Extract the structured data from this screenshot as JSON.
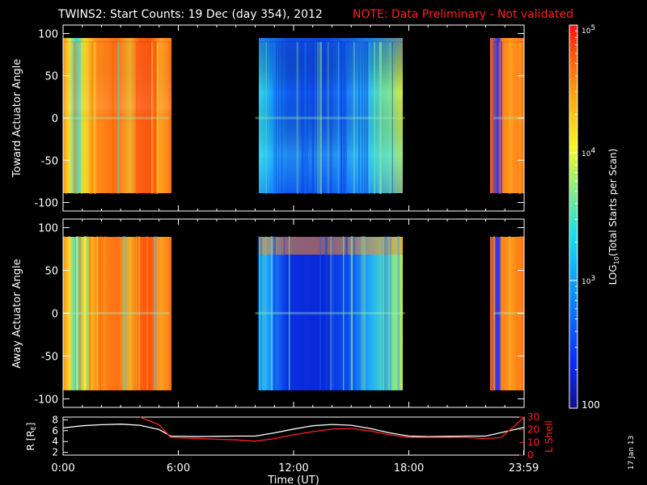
{
  "header": {
    "title": "TWINS2: Start Counts: 19 Dec (day 354), 2012",
    "note": "NOTE: Data Preliminary - Not validated",
    "title_color": "#ffffff",
    "note_color": "#ff2020"
  },
  "footer": {
    "stamp": "17 Jan 13"
  },
  "chart_data": [
    {
      "type": "heatmap",
      "panel": "top",
      "title": "",
      "ylabel": "Toward Actuator Angle",
      "xlabel": "",
      "xlim": [
        0,
        24
      ],
      "ylim": [
        -110,
        110
      ],
      "yticks": [
        -100,
        -50,
        0,
        50,
        100
      ],
      "angle_range": [
        -90,
        90
      ],
      "data_intervals_hours": [
        [
          0,
          5.55
        ],
        [
          10.0,
          17.8
        ],
        [
          22.4,
          24.0
        ]
      ],
      "approx_log10_counts": {
        "interval_1": 4.4,
        "interval_2": 3.2,
        "interval_3": 4.6
      }
    },
    {
      "type": "heatmap",
      "panel": "middle",
      "title": "",
      "ylabel": "Away Actuator Angle",
      "xlabel": "",
      "xlim": [
        0,
        24
      ],
      "ylim": [
        -110,
        110
      ],
      "yticks": [
        -100,
        -50,
        0,
        50,
        100
      ],
      "angle_range": [
        -90,
        90
      ],
      "data_intervals_hours": [
        [
          0,
          5.55
        ],
        [
          10.0,
          17.8
        ],
        [
          22.4,
          24.0
        ]
      ],
      "approx_log10_counts": {
        "interval_1": 4.4,
        "interval_2": 2.8,
        "interval_3": 4.6
      }
    },
    {
      "type": "line",
      "panel": "bottom",
      "xlabel": "Time (UT)",
      "ylabel": "R [R",
      "ylabel_sub": "E",
      "ylabel_close": "]",
      "ylabel_right": "L Shell",
      "ylim": [
        1.5,
        8.5
      ],
      "yticks": [
        2,
        4,
        6,
        8
      ],
      "ylim_right": [
        0,
        30
      ],
      "yticks_right": [
        0,
        10,
        20,
        30
      ],
      "xlim": [
        0,
        24
      ],
      "xticks": [
        0,
        6,
        12,
        18,
        23.983
      ],
      "xtick_labels": [
        "0:00",
        "6:00",
        "12:00",
        "18:00",
        "23:59"
      ],
      "series": [
        {
          "name": "R",
          "color": "#ffffff",
          "x": [
            0,
            1,
            2,
            3,
            4,
            5,
            5.6,
            7,
            8,
            9,
            10,
            11,
            12,
            13,
            14,
            15,
            16,
            17,
            18,
            19,
            20,
            21,
            22,
            23,
            24
          ],
          "values": [
            6.5,
            6.9,
            7.1,
            7.2,
            7.0,
            6.2,
            5.0,
            4.9,
            4.95,
            5.0,
            5.0,
            5.6,
            6.3,
            6.9,
            7.15,
            7.0,
            6.4,
            5.6,
            5.0,
            4.9,
            4.95,
            5.0,
            5.0,
            5.8,
            6.6
          ]
        },
        {
          "name": "L Shell",
          "color": "#ff2020",
          "x": [
            4.0,
            5.0,
            5.6,
            7,
            8,
            9,
            10,
            11,
            12,
            13,
            14,
            15,
            16,
            17,
            18,
            19,
            20,
            21,
            22,
            22.8,
            23.5,
            24
          ],
          "values": [
            31,
            24,
            14,
            13,
            12.5,
            12,
            11,
            13,
            16,
            18.5,
            20.5,
            21,
            19,
            16,
            14,
            14,
            14,
            14,
            13,
            14,
            23,
            31
          ]
        }
      ]
    },
    {
      "type": "colorbar",
      "label": "LOG",
      "label_sub": "10",
      "label_rest": "(Total Starts per Scan)",
      "scale": "log",
      "range": [
        100,
        100000
      ],
      "tick_labels": [
        "100",
        "10",
        "3",
        "10",
        "4",
        "10",
        "5"
      ],
      "ticks": [
        {
          "value": 100,
          "label": "100"
        },
        {
          "value": 1000,
          "base": "10",
          "exp": "3"
        },
        {
          "value": 10000,
          "base": "10",
          "exp": "4"
        },
        {
          "value": 100000,
          "base": "10",
          "exp": "5"
        }
      ]
    }
  ]
}
